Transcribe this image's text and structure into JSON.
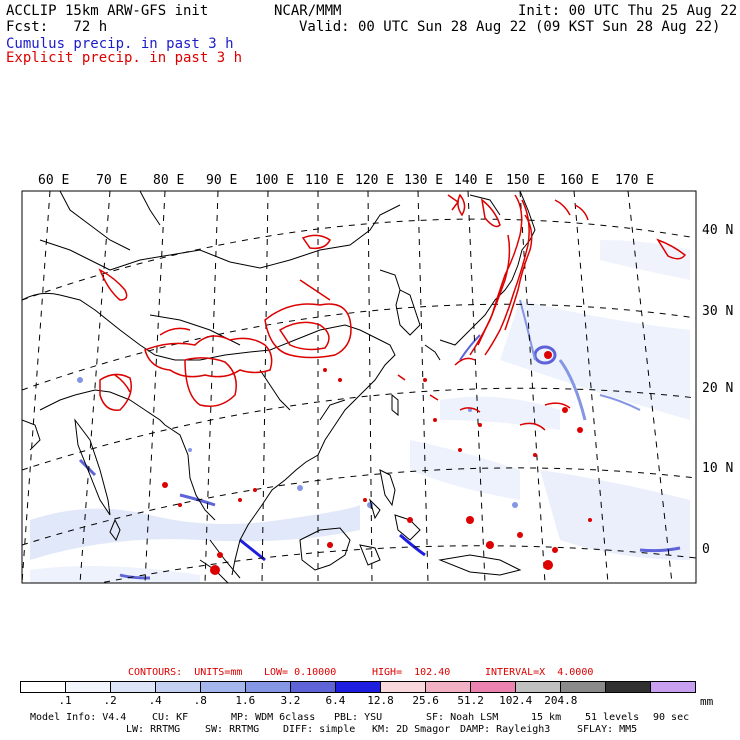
{
  "header": {
    "line1_left": "ACCLIP 15km ARW-GFS init",
    "line1_center": "NCAR/MMM",
    "line1_right": "Init: 00 UTC Thu 25 Aug 22",
    "line2_left": "Fcst:   72 h",
    "line2_right": "Valid: 00 UTC Sun 28 Aug 22 (09 KST Sun 28 Aug 22)",
    "legend_cumulus": "Cumulus precip. in past 3 h",
    "legend_explicit": "Explicit precip. in past 3 h"
  },
  "colors": {
    "cumulus_text": "#1c1cc8",
    "explicit_text": "#dc0000",
    "contours_text": "#dc0000",
    "coast": "#000000",
    "grid": "#000000"
  },
  "map": {
    "lon_labels": [
      "60 E",
      "70 E",
      "80 E",
      "90 E",
      "100 E",
      "110 E",
      "120 E",
      "130 E",
      "140 E",
      "150 E",
      "160 E",
      "170 E"
    ],
    "lat_labels": [
      "40 N",
      "30 N",
      "20 N",
      "10 N",
      "0"
    ]
  },
  "contours": {
    "units": "CONTOURS:  UNITS=mm",
    "low": "LOW= 0.10000",
    "high": "HIGH=  102.40",
    "interval": "INTERVAL=X  4.0000"
  },
  "colorbar": {
    "colors": [
      "#ffffff",
      "#f2f5fc",
      "#dce4f8",
      "#c3d0f2",
      "#a4b6ec",
      "#8596e4",
      "#5e64d8",
      "#1e1ee0",
      "#f8d8dc",
      "#f2b0c4",
      "#ec82b0",
      "#c0c0c0",
      "#8a8a8a",
      "#303030",
      "#c8a0f0"
    ],
    "labels": [
      ".1",
      ".2",
      ".4",
      ".8",
      "1.6",
      "3.2",
      "6.4",
      "12.8",
      "25.6",
      "51.2",
      "102.4",
      "204.8"
    ],
    "unit": "mm"
  },
  "footer": {
    "line1": [
      "Model Info: V4.4",
      "CU: KF",
      "MP: WDM 6class",
      "PBL: YSU",
      "SF: Noah LSM",
      "15 km",
      "51 levels",
      "90 sec"
    ],
    "line2": [
      "LW: RRTMG",
      "SW: RRTMG",
      "DIFF: simple",
      "KM: 2D Smagor",
      "DAMP: Rayleigh3",
      "SFLAY: MM5"
    ]
  }
}
